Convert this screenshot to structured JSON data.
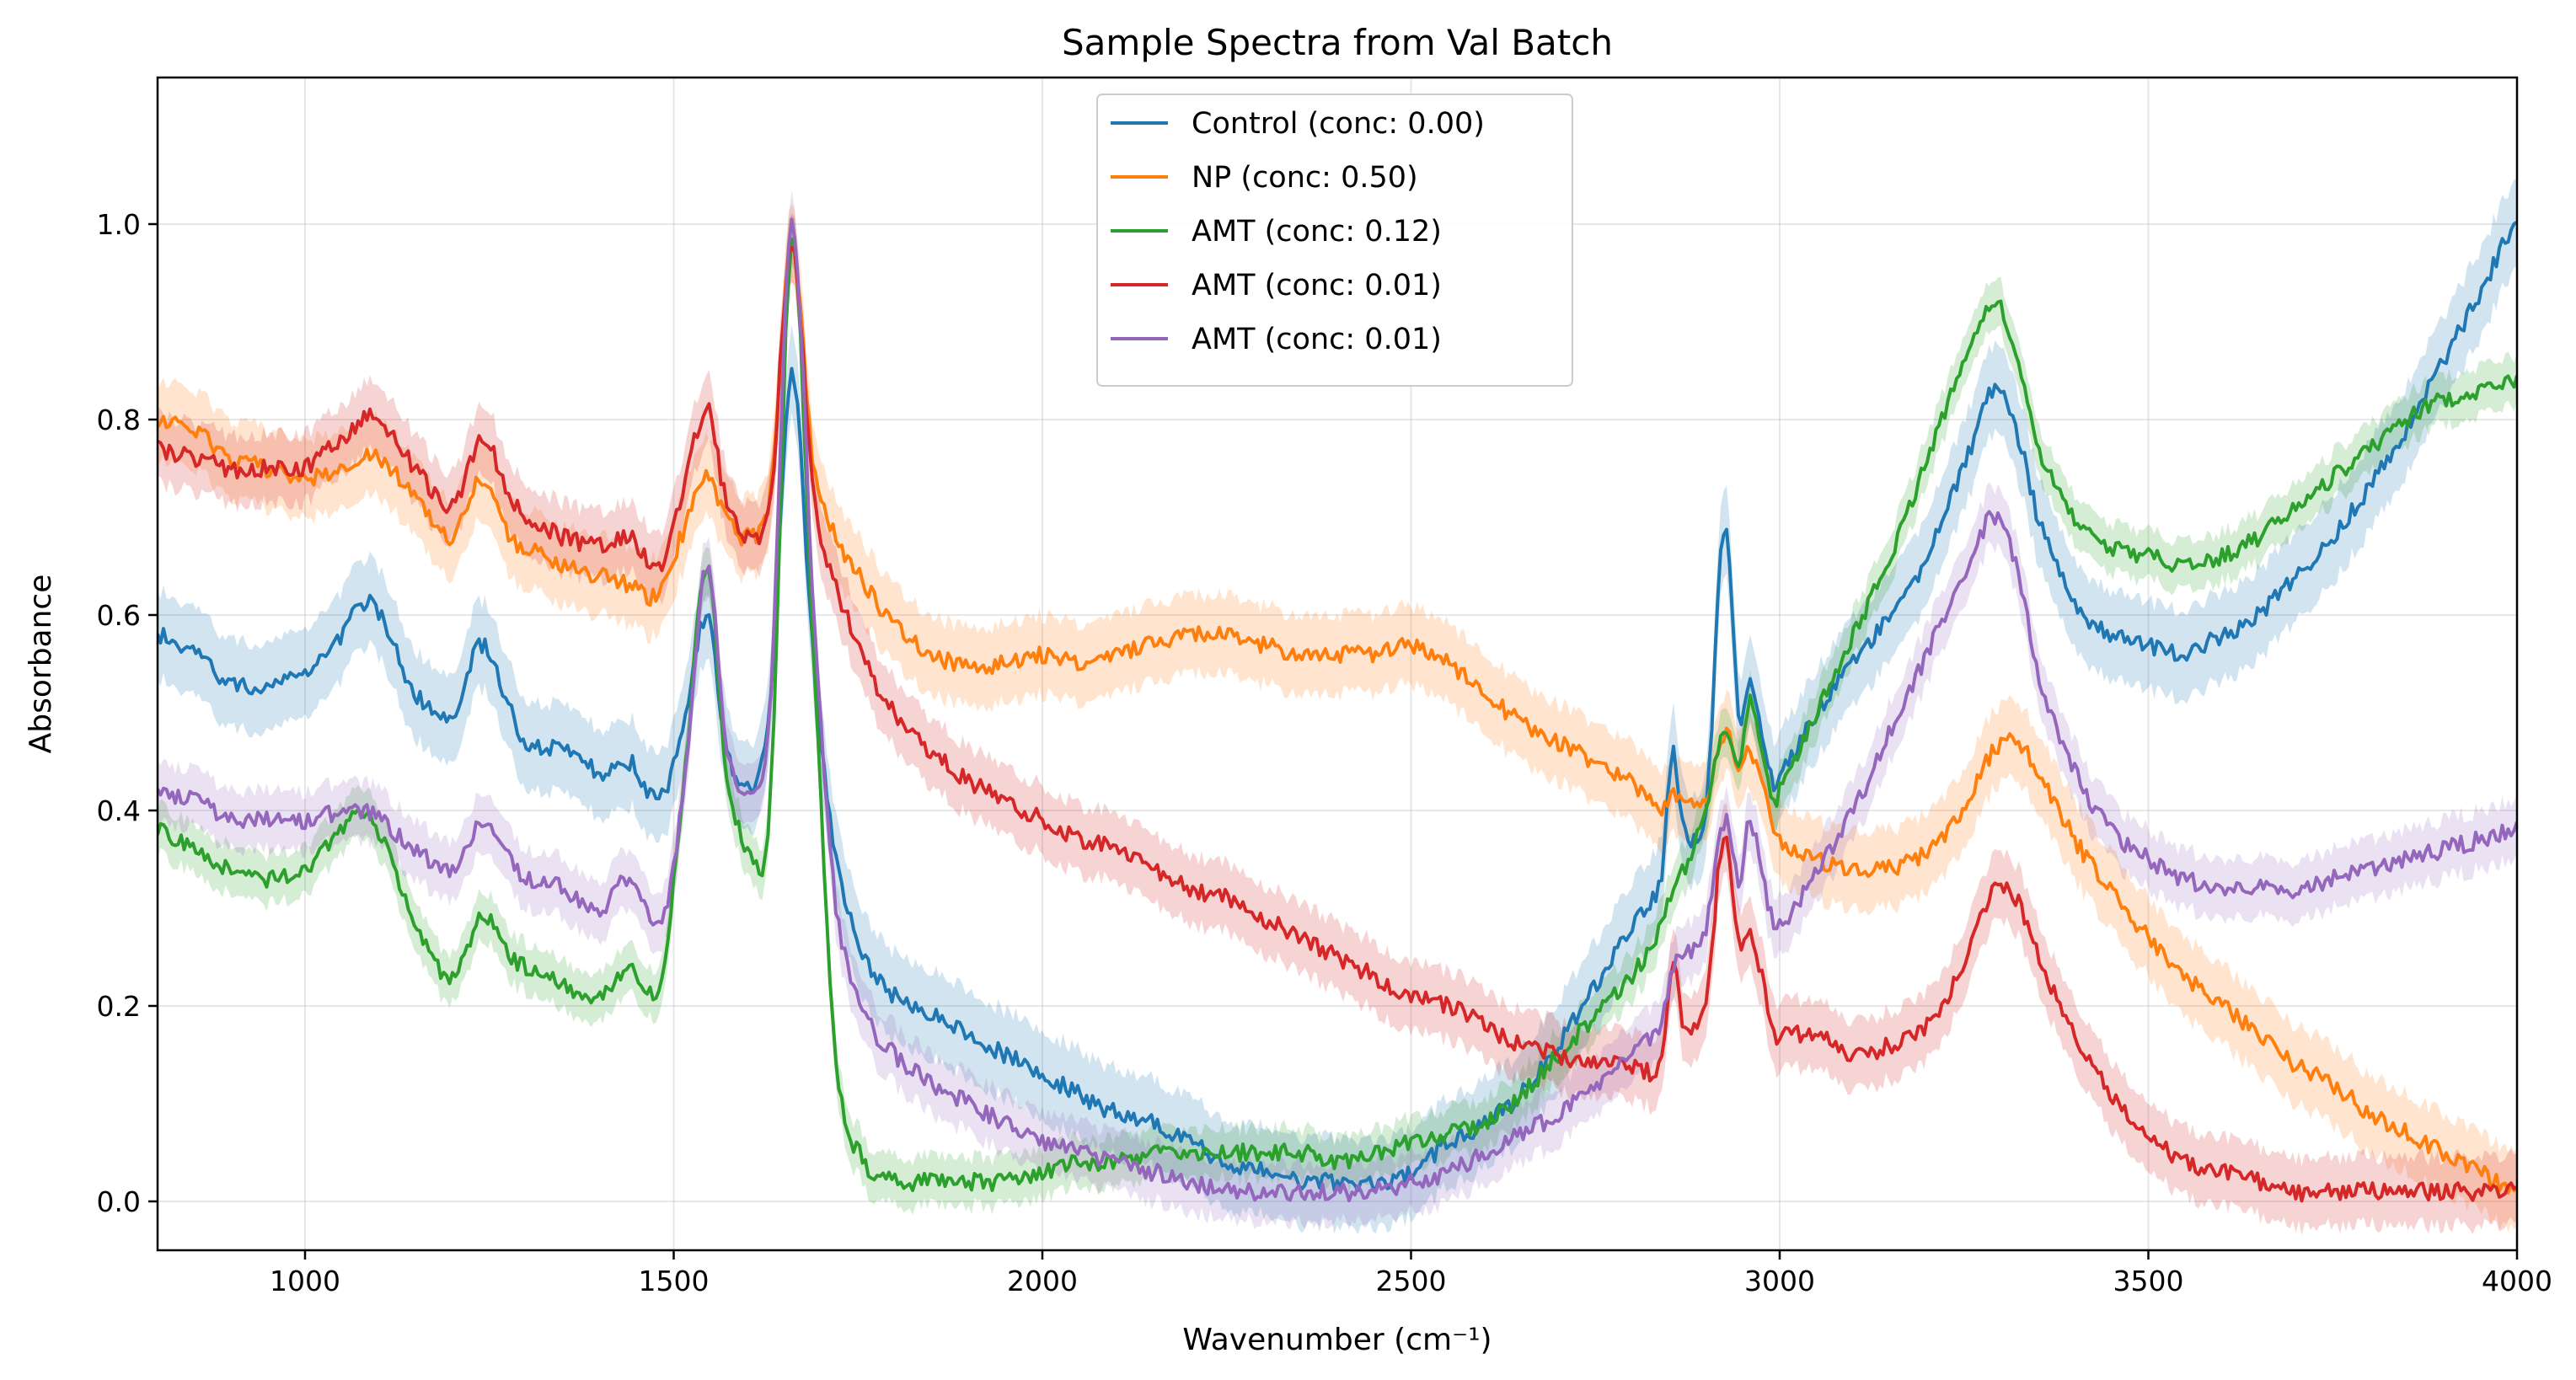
{
  "chart_data": {
    "type": "line",
    "title": "Sample Spectra from Val Batch",
    "xlabel": "Wavenumber (cm⁻¹)",
    "ylabel": "Absorbance",
    "xlim": [
      800,
      4000
    ],
    "ylim": [
      -0.05,
      1.15
    ],
    "xticks": [
      1000,
      1500,
      2000,
      2500,
      3000,
      3500,
      4000
    ],
    "yticks": [
      0.0,
      0.2,
      0.4,
      0.6,
      0.8,
      1.0
    ],
    "xtick_labels": [
      "1000",
      "1500",
      "2000",
      "2500",
      "3000",
      "3500",
      "4000"
    ],
    "ytick_labels": [
      "0.0",
      "0.2",
      "0.4",
      "0.6",
      "0.8",
      "1.0"
    ],
    "grid": true,
    "legend_position": "top-center",
    "shaded_band": "uncertainty band around each series",
    "series": [
      {
        "name": "Control (conc: 0.00)",
        "color": "#1f77b4",
        "band": 0.045,
        "x": [
          800,
          850,
          900,
          950,
          1000,
          1050,
          1080,
          1100,
          1150,
          1200,
          1240,
          1280,
          1300,
          1350,
          1400,
          1440,
          1480,
          1510,
          1545,
          1570,
          1600,
          1630,
          1660,
          1690,
          1720,
          1760,
          1800,
          1850,
          1900,
          1950,
          2000,
          2050,
          2100,
          2150,
          2200,
          2250,
          2300,
          2350,
          2400,
          2450,
          2500,
          2550,
          2600,
          2650,
          2700,
          2750,
          2800,
          2840,
          2855,
          2870,
          2900,
          2925,
          2945,
          2960,
          2990,
          3000,
          3050,
          3100,
          3150,
          3200,
          3250,
          3290,
          3320,
          3350,
          3400,
          3450,
          3500,
          3550,
          3600,
          3650,
          3700,
          3750,
          3800,
          3850,
          3900,
          3950,
          4000
        ],
        "y": [
          0.58,
          0.56,
          0.53,
          0.53,
          0.54,
          0.58,
          0.61,
          0.6,
          0.52,
          0.5,
          0.57,
          0.5,
          0.47,
          0.46,
          0.44,
          0.45,
          0.41,
          0.48,
          0.6,
          0.47,
          0.42,
          0.5,
          0.85,
          0.55,
          0.35,
          0.25,
          0.21,
          0.19,
          0.17,
          0.15,
          0.13,
          0.11,
          0.09,
          0.08,
          0.06,
          0.04,
          0.03,
          0.02,
          0.02,
          0.02,
          0.03,
          0.06,
          0.08,
          0.11,
          0.16,
          0.22,
          0.28,
          0.33,
          0.46,
          0.38,
          0.4,
          0.69,
          0.5,
          0.53,
          0.43,
          0.44,
          0.5,
          0.55,
          0.6,
          0.66,
          0.75,
          0.83,
          0.79,
          0.7,
          0.61,
          0.58,
          0.57,
          0.56,
          0.58,
          0.6,
          0.64,
          0.68,
          0.73,
          0.79,
          0.86,
          0.93,
          1.0
        ]
      },
      {
        "name": "NP (conc: 0.50)",
        "color": "#ff7f0e",
        "band": 0.04,
        "x": [
          800,
          850,
          900,
          950,
          1000,
          1050,
          1080,
          1100,
          1150,
          1200,
          1240,
          1280,
          1300,
          1350,
          1400,
          1440,
          1480,
          1510,
          1545,
          1570,
          1600,
          1630,
          1660,
          1690,
          1720,
          1760,
          1800,
          1850,
          1900,
          1950,
          2000,
          2050,
          2100,
          2150,
          2200,
          2250,
          2300,
          2350,
          2400,
          2450,
          2500,
          2550,
          2600,
          2650,
          2700,
          2750,
          2800,
          2840,
          2855,
          2870,
          2900,
          2925,
          2945,
          2960,
          2990,
          3000,
          3050,
          3100,
          3150,
          3200,
          3250,
          3290,
          3320,
          3350,
          3400,
          3450,
          3500,
          3550,
          3600,
          3650,
          3700,
          3750,
          3800,
          3850,
          3900,
          3950,
          4000
        ],
        "y": [
          0.8,
          0.79,
          0.76,
          0.75,
          0.74,
          0.75,
          0.76,
          0.76,
          0.72,
          0.68,
          0.74,
          0.68,
          0.67,
          0.65,
          0.64,
          0.63,
          0.62,
          0.68,
          0.74,
          0.7,
          0.68,
          0.72,
          0.98,
          0.75,
          0.68,
          0.63,
          0.59,
          0.56,
          0.55,
          0.55,
          0.56,
          0.55,
          0.56,
          0.57,
          0.58,
          0.58,
          0.57,
          0.56,
          0.56,
          0.56,
          0.57,
          0.55,
          0.52,
          0.49,
          0.47,
          0.45,
          0.43,
          0.4,
          0.42,
          0.41,
          0.41,
          0.48,
          0.44,
          0.46,
          0.39,
          0.37,
          0.35,
          0.34,
          0.34,
          0.36,
          0.4,
          0.46,
          0.47,
          0.44,
          0.37,
          0.32,
          0.27,
          0.23,
          0.2,
          0.17,
          0.14,
          0.12,
          0.09,
          0.07,
          0.05,
          0.03,
          0.01
        ]
      },
      {
        "name": "AMT (conc: 0.12)",
        "color": "#2ca02c",
        "band": 0.025,
        "x": [
          800,
          850,
          900,
          950,
          1000,
          1050,
          1080,
          1100,
          1150,
          1200,
          1240,
          1280,
          1300,
          1350,
          1400,
          1440,
          1480,
          1510,
          1545,
          1570,
          1600,
          1630,
          1660,
          1690,
          1720,
          1760,
          1800,
          1850,
          1900,
          1950,
          2000,
          2050,
          2100,
          2150,
          2200,
          2250,
          2300,
          2350,
          2400,
          2450,
          2500,
          2550,
          2600,
          2650,
          2700,
          2750,
          2800,
          2840,
          2855,
          2870,
          2900,
          2925,
          2945,
          2960,
          2990,
          3000,
          3050,
          3100,
          3150,
          3200,
          3250,
          3290,
          3320,
          3350,
          3400,
          3450,
          3500,
          3550,
          3600,
          3650,
          3700,
          3750,
          3800,
          3850,
          3900,
          3950,
          4000
        ],
        "y": [
          0.38,
          0.36,
          0.34,
          0.33,
          0.34,
          0.38,
          0.4,
          0.38,
          0.28,
          0.23,
          0.29,
          0.25,
          0.24,
          0.22,
          0.21,
          0.24,
          0.22,
          0.4,
          0.65,
          0.45,
          0.36,
          0.4,
          0.98,
          0.55,
          0.14,
          0.04,
          0.02,
          0.02,
          0.02,
          0.02,
          0.03,
          0.04,
          0.04,
          0.05,
          0.05,
          0.05,
          0.05,
          0.05,
          0.04,
          0.05,
          0.06,
          0.07,
          0.08,
          0.11,
          0.15,
          0.19,
          0.23,
          0.28,
          0.32,
          0.34,
          0.4,
          0.48,
          0.45,
          0.51,
          0.41,
          0.42,
          0.5,
          0.58,
          0.66,
          0.76,
          0.86,
          0.92,
          0.87,
          0.77,
          0.7,
          0.67,
          0.66,
          0.65,
          0.66,
          0.68,
          0.71,
          0.74,
          0.77,
          0.8,
          0.82,
          0.83,
          0.84
        ]
      },
      {
        "name": "AMT (conc: 0.01)",
        "color": "#d62728",
        "band": 0.035,
        "x": [
          800,
          850,
          900,
          950,
          1000,
          1050,
          1080,
          1100,
          1150,
          1200,
          1240,
          1280,
          1300,
          1350,
          1400,
          1440,
          1480,
          1510,
          1545,
          1570,
          1600,
          1630,
          1660,
          1690,
          1720,
          1760,
          1800,
          1850,
          1900,
          1950,
          2000,
          2050,
          2100,
          2150,
          2200,
          2250,
          2300,
          2350,
          2400,
          2450,
          2500,
          2550,
          2600,
          2650,
          2700,
          2750,
          2800,
          2840,
          2855,
          2870,
          2900,
          2925,
          2945,
          2960,
          2990,
          3000,
          3050,
          3100,
          3150,
          3200,
          3250,
          3290,
          3320,
          3350,
          3400,
          3450,
          3500,
          3550,
          3600,
          3650,
          3700,
          3750,
          3800,
          3850,
          3900,
          3950,
          4000
        ],
        "y": [
          0.77,
          0.76,
          0.75,
          0.75,
          0.75,
          0.78,
          0.8,
          0.8,
          0.75,
          0.71,
          0.78,
          0.72,
          0.7,
          0.68,
          0.67,
          0.68,
          0.65,
          0.72,
          0.81,
          0.72,
          0.68,
          0.71,
          0.98,
          0.72,
          0.63,
          0.55,
          0.5,
          0.46,
          0.43,
          0.41,
          0.39,
          0.37,
          0.36,
          0.34,
          0.32,
          0.31,
          0.29,
          0.27,
          0.25,
          0.23,
          0.21,
          0.2,
          0.18,
          0.16,
          0.15,
          0.14,
          0.14,
          0.14,
          0.25,
          0.18,
          0.2,
          0.38,
          0.26,
          0.28,
          0.18,
          0.17,
          0.17,
          0.15,
          0.16,
          0.18,
          0.24,
          0.32,
          0.31,
          0.25,
          0.17,
          0.11,
          0.07,
          0.04,
          0.03,
          0.02,
          0.01,
          0.01,
          0.01,
          0.01,
          0.01,
          0.01,
          0.01
        ]
      },
      {
        "name": "AMT (conc: 0.01)",
        "color": "#9467bd",
        "band": 0.03,
        "x": [
          800,
          850,
          900,
          950,
          1000,
          1050,
          1080,
          1100,
          1150,
          1200,
          1240,
          1280,
          1300,
          1350,
          1400,
          1440,
          1480,
          1510,
          1545,
          1570,
          1600,
          1630,
          1660,
          1690,
          1720,
          1760,
          1800,
          1850,
          1900,
          1950,
          2000,
          2050,
          2100,
          2150,
          2200,
          2250,
          2300,
          2350,
          2400,
          2450,
          2500,
          2550,
          2600,
          2650,
          2700,
          2750,
          2800,
          2840,
          2855,
          2870,
          2900,
          2925,
          2945,
          2960,
          2990,
          3000,
          3050,
          3100,
          3150,
          3200,
          3250,
          3290,
          3320,
          3350,
          3400,
          3450,
          3500,
          3550,
          3600,
          3650,
          3700,
          3750,
          3800,
          3850,
          3900,
          3950,
          4000
        ],
        "y": [
          0.42,
          0.41,
          0.39,
          0.39,
          0.39,
          0.4,
          0.4,
          0.39,
          0.36,
          0.34,
          0.39,
          0.35,
          0.33,
          0.32,
          0.3,
          0.33,
          0.28,
          0.4,
          0.65,
          0.47,
          0.42,
          0.5,
          1.0,
          0.6,
          0.3,
          0.19,
          0.15,
          0.12,
          0.1,
          0.08,
          0.06,
          0.05,
          0.04,
          0.03,
          0.02,
          0.01,
          0.01,
          0.01,
          0.01,
          0.01,
          0.02,
          0.03,
          0.05,
          0.07,
          0.09,
          0.12,
          0.15,
          0.18,
          0.24,
          0.25,
          0.28,
          0.39,
          0.33,
          0.39,
          0.29,
          0.28,
          0.34,
          0.4,
          0.48,
          0.56,
          0.64,
          0.7,
          0.65,
          0.54,
          0.44,
          0.38,
          0.35,
          0.33,
          0.32,
          0.32,
          0.32,
          0.33,
          0.34,
          0.35,
          0.36,
          0.37,
          0.38
        ]
      }
    ]
  }
}
